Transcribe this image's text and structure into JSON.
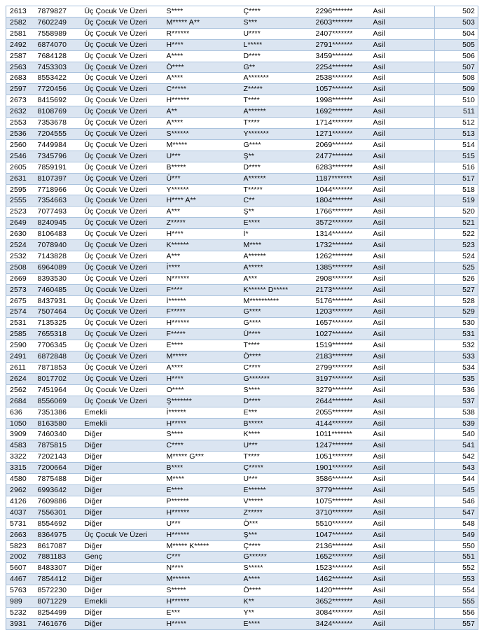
{
  "document": {
    "kind": "masked-draw-results-list",
    "status_value": "Asil",
    "categories_seen": [
      "Üç Çocuk Ve Üzeri",
      "Emekli",
      "Diğer",
      "Genç"
    ],
    "row_number_range": {
      "first": "502",
      "last": "557"
    }
  },
  "colors": {
    "band_fill": "#dbe5f1",
    "row_rule": "#a9c2dd",
    "outer_border": "#94afcd",
    "text": "#000000",
    "page_background": "#ffffff"
  },
  "table": {
    "column_keys": [
      "sequence_no",
      "application_no",
      "category",
      "first_name_masked",
      "last_name_masked",
      "id_number_masked",
      "status",
      "row_no"
    ],
    "rows": [
      [
        "2613",
        "7879827",
        "Üç Çocuk Ve Üzeri",
        "S****",
        "Ç****",
        "2296*******",
        "Asil",
        "502"
      ],
      [
        "2582",
        "7602249",
        "Üç Çocuk Ve Üzeri",
        "M***** A**",
        "S***",
        "2603*******",
        "Asil",
        "503"
      ],
      [
        "2581",
        "7558989",
        "Üç Çocuk Ve Üzeri",
        "R******",
        "U****",
        "2407*******",
        "Asil",
        "504"
      ],
      [
        "2492",
        "6874070",
        "Üç Çocuk Ve Üzeri",
        "H****",
        "L*****",
        "2791*******",
        "Asil",
        "505"
      ],
      [
        "2587",
        "7684128",
        "Üç Çocuk Ve Üzeri",
        "A****",
        "D****",
        "3459*******",
        "Asil",
        "506"
      ],
      [
        "2563",
        "7453303",
        "Üç Çocuk Ve Üzeri",
        "Ö****",
        "G**",
        "2254*******",
        "Asil",
        "507"
      ],
      [
        "2683",
        "8553422",
        "Üç Çocuk Ve Üzeri",
        "A****",
        "A*******",
        "2538*******",
        "Asil",
        "508"
      ],
      [
        "2597",
        "7720456",
        "Üç Çocuk Ve Üzeri",
        "C*****",
        "Z*****",
        "1057*******",
        "Asil",
        "509"
      ],
      [
        "2673",
        "8415692",
        "Üç Çocuk Ve Üzeri",
        "H******",
        "T****",
        "1998*******",
        "Asil",
        "510"
      ],
      [
        "2632",
        "8108769",
        "Üç Çocuk Ve Üzeri",
        "A**",
        "A******",
        "1692*******",
        "Asil",
        "511"
      ],
      [
        "2553",
        "7353678",
        "Üç Çocuk Ve Üzeri",
        "A****",
        "T****",
        "1714*******",
        "Asil",
        "512"
      ],
      [
        "2536",
        "7204555",
        "Üç Çocuk Ve Üzeri",
        "S******",
        "Y*******",
        "1271*******",
        "Asil",
        "513"
      ],
      [
        "2560",
        "7449984",
        "Üç Çocuk Ve Üzeri",
        "M*****",
        "G****",
        "2069*******",
        "Asil",
        "514"
      ],
      [
        "2546",
        "7345796",
        "Üç Çocuk Ve Üzeri",
        "U***",
        "Ş**",
        "2477*******",
        "Asil",
        "515"
      ],
      [
        "2605",
        "7859191",
        "Üç Çocuk Ve Üzeri",
        "B*****",
        "D****",
        "6283*******",
        "Asil",
        "516"
      ],
      [
        "2631",
        "8107397",
        "Üç Çocuk Ve Üzeri",
        "Ü***",
        "A******",
        "1187*******",
        "Asil",
        "517"
      ],
      [
        "2595",
        "7718966",
        "Üç Çocuk Ve Üzeri",
        "Y******",
        "T*****",
        "1044*******",
        "Asil",
        "518"
      ],
      [
        "2555",
        "7354663",
        "Üç Çocuk Ve Üzeri",
        "H**** A**",
        "C**",
        "1804*******",
        "Asil",
        "519"
      ],
      [
        "2523",
        "7077493",
        "Üç Çocuk Ve Üzeri",
        "A***",
        "Ş**",
        "1766*******",
        "Asil",
        "520"
      ],
      [
        "2649",
        "8240945",
        "Üç Çocuk Ve Üzeri",
        "Z*****",
        "E****",
        "3572*******",
        "Asil",
        "521"
      ],
      [
        "2630",
        "8106483",
        "Üç Çocuk Ve Üzeri",
        "H****",
        "İ*",
        "1314*******",
        "Asil",
        "522"
      ],
      [
        "2524",
        "7078940",
        "Üç Çocuk Ve Üzeri",
        "K******",
        "M****",
        "1732*******",
        "Asil",
        "523"
      ],
      [
        "2532",
        "7143828",
        "Üç Çocuk Ve Üzeri",
        "A***",
        "A******",
        "1262*******",
        "Asil",
        "524"
      ],
      [
        "2508",
        "6964089",
        "Üç Çocuk Ve Üzeri",
        "İ****",
        "A*****",
        "1385*******",
        "Asil",
        "525"
      ],
      [
        "2669",
        "8393530",
        "Üç Çocuk Ve Üzeri",
        "N******",
        "A***",
        "2908*******",
        "Asil",
        "526"
      ],
      [
        "2573",
        "7460485",
        "Üç Çocuk Ve Üzeri",
        "F****",
        "K****** D*****",
        "2173*******",
        "Asil",
        "527"
      ],
      [
        "2675",
        "8437931",
        "Üç Çocuk Ve Üzeri",
        "İ******",
        "M**********",
        "5176*******",
        "Asil",
        "528"
      ],
      [
        "2574",
        "7507464",
        "Üç Çocuk Ve Üzeri",
        "F*****",
        "G****",
        "1203*******",
        "Asil",
        "529"
      ],
      [
        "2531",
        "7135325",
        "Üç Çocuk Ve Üzeri",
        "H******",
        "G****",
        "1657*******",
        "Asil",
        "530"
      ],
      [
        "2585",
        "7655318",
        "Üç Çocuk Ve Üzeri",
        "F*****",
        "Ü****",
        "1027*******",
        "Asil",
        "531"
      ],
      [
        "2590",
        "7706345",
        "Üç Çocuk Ve Üzeri",
        "E****",
        "T****",
        "1519*******",
        "Asil",
        "532"
      ],
      [
        "2491",
        "6872848",
        "Üç Çocuk Ve Üzeri",
        "M*****",
        "Ö****",
        "2183*******",
        "Asil",
        "533"
      ],
      [
        "2611",
        "7871853",
        "Üç Çocuk Ve Üzeri",
        "A****",
        "C****",
        "2799*******",
        "Asil",
        "534"
      ],
      [
        "2624",
        "8017702",
        "Üç Çocuk Ve Üzeri",
        "H****",
        "G*******",
        "3197*******",
        "Asil",
        "535"
      ],
      [
        "2562",
        "7451964",
        "Üç Çocuk Ve Üzeri",
        "O****",
        "S****",
        "3279*******",
        "Asil",
        "536"
      ],
      [
        "2684",
        "8556069",
        "Üç Çocuk Ve Üzeri",
        "Ş*******",
        "D****",
        "2644*******",
        "Asil",
        "537"
      ],
      [
        "636",
        "7351386",
        "Emekli",
        "İ******",
        "E***",
        "2055*******",
        "Asil",
        "538"
      ],
      [
        "1050",
        "8163580",
        "Emekli",
        "H*****",
        "B*****",
        "4144*******",
        "Asil",
        "539"
      ],
      [
        "3909",
        "7460340",
        "Diğer",
        "S****",
        "K****",
        "1011*******",
        "Asil",
        "540"
      ],
      [
        "4583",
        "7875815",
        "Diğer",
        "C****",
        "U***",
        "1247*******",
        "Asil",
        "541"
      ],
      [
        "3322",
        "7202143",
        "Diğer",
        "M***** G***",
        "T****",
        "1051*******",
        "Asil",
        "542"
      ],
      [
        "3315",
        "7200664",
        "Diğer",
        "B****",
        "Ç*****",
        "1901*******",
        "Asil",
        "543"
      ],
      [
        "4580",
        "7875488",
        "Diğer",
        "M****",
        "U***",
        "3586*******",
        "Asil",
        "544"
      ],
      [
        "2962",
        "6993642",
        "Diğer",
        "E****",
        "E******",
        "3779*******",
        "Asil",
        "545"
      ],
      [
        "4126",
        "7609886",
        "Diğer",
        "P******",
        "V*****",
        "1075*******",
        "Asil",
        "546"
      ],
      [
        "4037",
        "7556301",
        "Diğer",
        "H******",
        "Z*****",
        "3710*******",
        "Asil",
        "547"
      ],
      [
        "5731",
        "8554692",
        "Diğer",
        "U***",
        "Ö***",
        "5510*******",
        "Asil",
        "548"
      ],
      [
        "2663",
        "8364975",
        "Üç Çocuk Ve Üzeri",
        "H******",
        "Ş***",
        "1047*******",
        "Asil",
        "549"
      ],
      [
        "5823",
        "8617087",
        "Diğer",
        "M***** K*****",
        "Ç****",
        "2136*******",
        "Asil",
        "550"
      ],
      [
        "2002",
        "7881183",
        "Genç",
        "C***",
        "G******",
        "1652*******",
        "Asil",
        "551"
      ],
      [
        "5607",
        "8483307",
        "Diğer",
        "N****",
        "S*****",
        "1523*******",
        "Asil",
        "552"
      ],
      [
        "4467",
        "7854412",
        "Diğer",
        "M******",
        "A****",
        "1462*******",
        "Asil",
        "553"
      ],
      [
        "5763",
        "8572230",
        "Diğer",
        "S*****",
        "Ö****",
        "1420*******",
        "Asil",
        "554"
      ],
      [
        "989",
        "8071229",
        "Emekli",
        "H******",
        "K**",
        "3652*******",
        "Asil",
        "555"
      ],
      [
        "5232",
        "8254499",
        "Diğer",
        "E***",
        "Y**",
        "3084*******",
        "Asil",
        "556"
      ],
      [
        "3931",
        "7461676",
        "Diğer",
        "H*****",
        "E****",
        "3424*******",
        "Asil",
        "557"
      ]
    ]
  }
}
